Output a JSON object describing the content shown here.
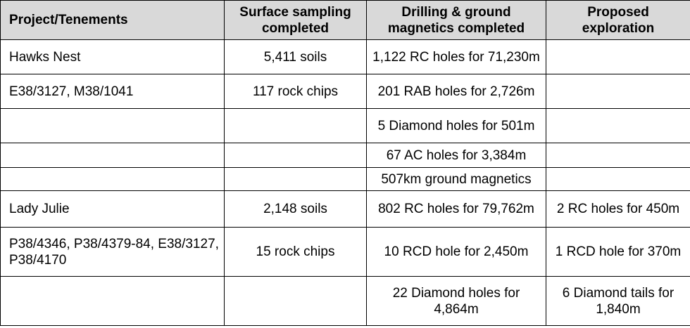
{
  "headers": {
    "project": "Project/Tenements",
    "surface": "Surface sampling completed",
    "drilling": "Drilling & ground magnetics completed",
    "proposed": "Proposed exploration"
  },
  "rows": [
    {
      "project": "Hawks Nest",
      "surface": "5,411 soils",
      "drilling": "1,122 RC holes for 71,230m",
      "proposed": ""
    },
    {
      "project": "E38/3127, M38/1041",
      "surface": "117 rock chips",
      "drilling": "201 RAB holes for 2,726m",
      "proposed": ""
    },
    {
      "project": "",
      "surface": "",
      "drilling": "5 Diamond holes for 501m",
      "proposed": ""
    },
    {
      "project": "",
      "surface": "",
      "drilling": "67 AC holes for 3,384m",
      "proposed": ""
    },
    {
      "project": "",
      "surface": "",
      "drilling": "507km ground magnetics",
      "proposed": ""
    },
    {
      "project": "Lady Julie",
      "surface": "2,148 soils",
      "drilling": "802 RC holes for 79,762m",
      "proposed": "2 RC holes for 450m"
    },
    {
      "project": "P38/4346, P38/4379-84, E38/3127, P38/4170",
      "surface": "15 rock chips",
      "drilling": "10 RCD hole for 2,450m",
      "proposed": "1 RCD hole for 370m"
    },
    {
      "project": "",
      "surface": "",
      "drilling": "22 Diamond holes for 4,864m",
      "proposed": "6 Diamond tails for 1,840m"
    }
  ]
}
